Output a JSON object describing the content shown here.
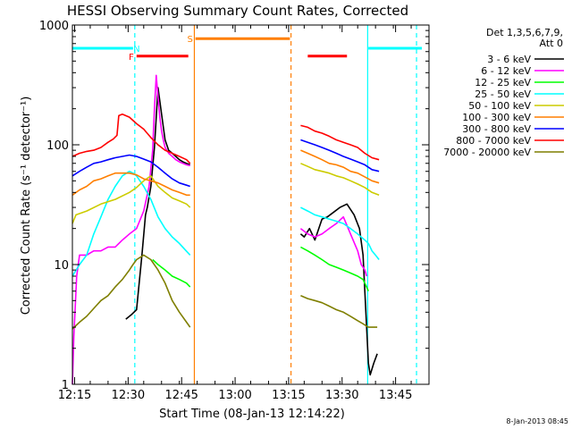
{
  "chart_data": {
    "type": "line",
    "title": "HESSI Observing Summary Count Rates, Corrected",
    "xlabel": "Start Time (08-Jan-13 12:14:22)",
    "ylabel": "Corrected Count Rate (s⁻¹ detector⁻¹)",
    "ylog": true,
    "ylim": [
      1,
      1000
    ],
    "xlim_minutes": [
      0,
      100
    ],
    "x_tick_labels": [
      "12:15",
      "12:30",
      "12:45",
      "13:00",
      "13:15",
      "13:30",
      "13:45"
    ],
    "x_tick_minutes": [
      0.63,
      15.63,
      30.63,
      45.63,
      60.63,
      75.63,
      90.63
    ],
    "y_tick_labels": [
      "1",
      "10",
      "100",
      "1000"
    ],
    "y_tick_values": [
      1,
      10,
      100,
      1000
    ],
    "legend": {
      "placement": "right",
      "header": [
        "Det 1,3,5,6,7,9,",
        "Att 0"
      ]
    },
    "footer_date": "8-Jan-2013 08:45",
    "flags": [
      {
        "label": "N",
        "color": "#00ffff",
        "segments": [
          [
            0,
            17
          ],
          [
            83,
            98
          ]
        ],
        "level": 640,
        "label_at": 18
      },
      {
        "label": "S",
        "color": "#ff7f00",
        "segments": [
          [
            34.5,
            61
          ]
        ],
        "level": 770,
        "label_at": 33
      },
      {
        "label": "F",
        "color": "#ff0000",
        "segments": [
          [
            18,
            32.5
          ],
          [
            66,
            77
          ]
        ],
        "level": 550,
        "label_at": 16.5
      }
    ],
    "vlines": [
      {
        "x": 17.5,
        "color": "#00ffff",
        "style": "dashed"
      },
      {
        "x": 34.2,
        "color": "#ff7f00",
        "style": "solid"
      },
      {
        "x": 61.3,
        "color": "#ff7f00",
        "style": "dashed"
      },
      {
        "x": 82.8,
        "color": "#00ffff",
        "style": "solid"
      },
      {
        "x": 96.5,
        "color": "#00ffff",
        "style": "dashed"
      }
    ],
    "series": [
      {
        "name": "3 - 6 keV",
        "color": "#000000",
        "segments": [
          {
            "x": [
              15.0,
              16.5,
              18.0,
              19.5,
              20.5,
              21.0,
              22.0,
              23.0,
              24.0,
              25.0,
              26.0,
              27.0,
              28.0,
              29.0,
              30.0,
              31.0,
              32.0,
              33.0
            ],
            "y": [
              3.5,
              3.8,
              4.2,
              12,
              26,
              30,
              45,
              95,
              300,
              180,
              110,
              90,
              85,
              80,
              75,
              72,
              70,
              68
            ]
          },
          {
            "x": [
              64.0,
              65.0,
              66.5,
              68.0,
              70.0,
              71.5,
              73.0,
              75.0,
              77.0,
              79.0,
              80.5,
              81.5,
              82.0,
              82.5,
              83.0,
              83.5,
              84.5,
              85.5
            ],
            "y": [
              18,
              17,
              20,
              16,
              24,
              25,
              27,
              30,
              32,
              26,
              20,
              12,
              6,
              3,
              1.5,
              1.2,
              1.5,
              1.8
            ]
          }
        ]
      },
      {
        "name": "6 - 12 keV",
        "color": "#ff00ff",
        "segments": [
          {
            "x": [
              0.0,
              0.4,
              1.2,
              2.0,
              4.0,
              6.0,
              8.0,
              10.0,
              12.0,
              14.0,
              16.0,
              18.0,
              20.0,
              21.5,
              22.5,
              23.0,
              23.5,
              24.0,
              24.5,
              25.0,
              25.5,
              26.0,
              27.0,
              28.0,
              29.0,
              30.0,
              31.0,
              32.0,
              33.0
            ],
            "y": [
              1.0,
              2.5,
              8,
              12,
              12,
              13,
              13,
              14,
              14,
              16,
              18,
              20,
              28,
              45,
              90,
              200,
              380,
              250,
              170,
              130,
              110,
              95,
              85,
              80,
              75,
              72,
              70,
              68,
              67
            ]
          },
          {
            "x": [
              64.0,
              66.0,
              68.0,
              70.0,
              72.0,
              74.0,
              76.0,
              78.0,
              80.0,
              81.0,
              82.0,
              82.5
            ],
            "y": [
              20,
              18,
              17,
              18,
              20,
              22,
              25,
              18,
              13,
              10,
              9,
              8
            ]
          }
        ]
      },
      {
        "name": "12 - 25 keV",
        "color": "#00ff00",
        "segments": [
          {
            "x": [
              22.5,
              24.0,
              26.0,
              28.0,
              30.0,
              32.0,
              33.0
            ],
            "y": [
              11,
              10,
              9,
              8,
              7.5,
              7,
              6.5
            ]
          },
          {
            "x": [
              64.0,
              66.0,
              68.0,
              70.0,
              72.0,
              74.0,
              76.0,
              78.0,
              80.0,
              81.5,
              82.5,
              83.0
            ],
            "y": [
              14,
              13,
              12,
              11,
              10,
              9.5,
              9,
              8.5,
              8,
              7.5,
              6.5,
              6
            ]
          }
        ]
      },
      {
        "name": "25 - 50 keV",
        "color": "#00ffff",
        "segments": [
          {
            "x": [
              0.0,
              2.0,
              4.0,
              6.0,
              8.0,
              10.0,
              12.0,
              14.0,
              16.0,
              17.0,
              18.0,
              20.0,
              22.0,
              24.0,
              26.0,
              28.0,
              30.0,
              33.0
            ],
            "y": [
              8,
              10,
              12,
              18,
              25,
              35,
              45,
              55,
              60,
              58,
              55,
              45,
              35,
              25,
              20,
              17,
              15,
              12
            ]
          },
          {
            "x": [
              64.0,
              66.0,
              68.0,
              70.0,
              72.0,
              74.0,
              76.0,
              78.0,
              80.0,
              82.0,
              83.0,
              84.0,
              85.0,
              86.0
            ],
            "y": [
              30,
              28,
              26,
              25,
              24,
              23,
              22,
              20,
              18,
              16,
              15,
              13,
              12,
              11
            ]
          }
        ]
      },
      {
        "name": "50 - 100 keV",
        "color": "#cccc00",
        "segments": [
          {
            "x": [
              0.0,
              1.0,
              4.0,
              8.0,
              12.0,
              16.0,
              18.0,
              20.0,
              22.0,
              24.0,
              26.0,
              28.0,
              30.0,
              32.0,
              33.0
            ],
            "y": [
              22,
              26,
              28,
              32,
              35,
              40,
              44,
              50,
              55,
              45,
              40,
              36,
              34,
              32,
              30
            ]
          },
          {
            "x": [
              64.0,
              66.0,
              68.0,
              70.0,
              72.0,
              74.0,
              76.0,
              78.0,
              80.0,
              82.0,
              84.0,
              86.0
            ],
            "y": [
              70,
              66,
              62,
              60,
              58,
              55,
              53,
              50,
              47,
              44,
              40,
              38
            ]
          }
        ]
      },
      {
        "name": "100 - 300 keV",
        "color": "#ff7f00",
        "segments": [
          {
            "x": [
              0.0,
              2.0,
              4.0,
              6.0,
              8.0,
              10.0,
              12.0,
              14.0,
              16.0,
              18.0,
              20.0,
              22.0,
              24.0,
              26.0,
              28.0,
              30.0,
              32.0,
              33.0
            ],
            "y": [
              38,
              42,
              45,
              50,
              52,
              55,
              58,
              58,
              58,
              56,
              52,
              50,
              48,
              45,
              42,
              40,
              38,
              38
            ]
          },
          {
            "x": [
              64.0,
              66.0,
              68.0,
              70.0,
              72.0,
              74.0,
              76.0,
              78.0,
              80.0,
              82.0,
              84.0,
              86.0
            ],
            "y": [
              90,
              85,
              80,
              75,
              70,
              68,
              65,
              60,
              58,
              54,
              50,
              48
            ]
          }
        ]
      },
      {
        "name": "300 - 800 keV",
        "color": "#0000ff",
        "segments": [
          {
            "x": [
              0.0,
              2.0,
              4.0,
              6.0,
              8.0,
              10.0,
              12.0,
              14.0,
              16.0,
              18.0,
              20.0,
              22.0,
              24.0,
              26.0,
              28.0,
              30.0,
              32.0,
              33.0
            ],
            "y": [
              55,
              60,
              65,
              70,
              72,
              75,
              78,
              80,
              82,
              80,
              76,
              72,
              65,
              58,
              52,
              48,
              46,
              45
            ]
          },
          {
            "x": [
              64.0,
              66.0,
              68.0,
              70.0,
              72.0,
              74.0,
              76.0,
              78.0,
              80.0,
              82.0,
              84.0,
              86.0
            ],
            "y": [
              110,
              105,
              100,
              95,
              90,
              85,
              80,
              76,
              72,
              68,
              62,
              60
            ]
          }
        ]
      },
      {
        "name": "800 - 7000 keV",
        "color": "#ff0000",
        "segments": [
          {
            "x": [
              0.0,
              2.0,
              4.0,
              6.0,
              8.0,
              10.0,
              11.5,
              12.5,
              13.0,
              14.0,
              16.0,
              18.0,
              20.0,
              22.0,
              24.0,
              26.0,
              28.0,
              30.0,
              32.0,
              33.0
            ],
            "y": [
              80,
              85,
              88,
              90,
              95,
              105,
              112,
              120,
              175,
              180,
              170,
              150,
              135,
              115,
              100,
              90,
              85,
              80,
              75,
              70
            ]
          },
          {
            "x": [
              64.0,
              66.0,
              68.0,
              70.0,
              72.0,
              74.0,
              76.0,
              78.0,
              80.0,
              82.0,
              84.0,
              86.0
            ],
            "y": [
              145,
              140,
              130,
              125,
              118,
              110,
              105,
              100,
              95,
              85,
              78,
              75
            ]
          }
        ]
      },
      {
        "name": "7000 - 20000 keV",
        "color": "#7f7f00",
        "segments": [
          {
            "x": [
              0.0,
              2.0,
              4.0,
              6.0,
              8.0,
              10.0,
              12.0,
              14.0,
              16.0,
              17.0,
              18.0,
              20.0,
              22.0,
              24.0,
              26.0,
              28.0,
              30.0,
              32.0,
              33.0
            ],
            "y": [
              2.9,
              3.3,
              3.7,
              4.3,
              5,
              5.5,
              6.5,
              7.5,
              9,
              10,
              11,
              12,
              11,
              9,
              7,
              5,
              4,
              3.3,
              3.0
            ]
          },
          {
            "x": [
              64.0,
              66.0,
              68.0,
              70.0,
              72.0,
              74.0,
              76.0,
              78.0,
              80.0,
              81.5,
              83.0,
              84.5,
              85.5
            ],
            "y": [
              5.5,
              5.2,
              5,
              4.8,
              4.5,
              4.2,
              4,
              3.7,
              3.4,
              3.2,
              3,
              3,
              3
            ]
          }
        ]
      }
    ]
  }
}
